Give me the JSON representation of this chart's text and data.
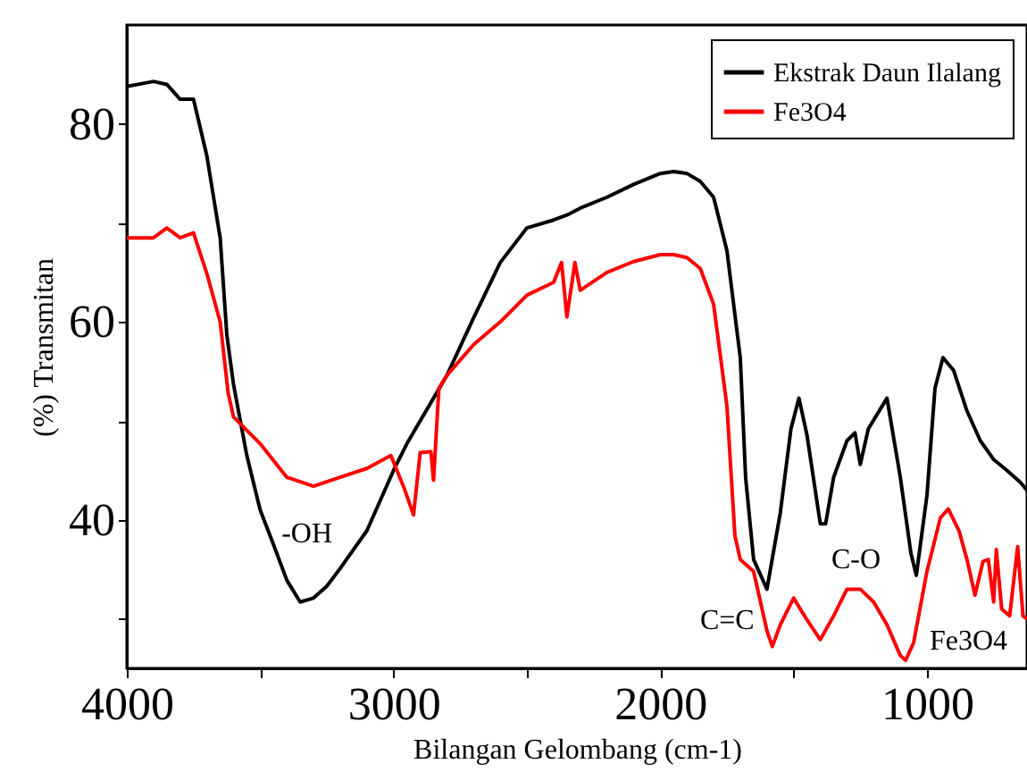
{
  "chart_data": {
    "type": "line",
    "xlabel": "Bilangan Gelombang (cm-1)",
    "ylabel": "(%) Transmitan",
    "x": [
      4000,
      3900,
      3850,
      3800,
      3750,
      3700,
      3650,
      3625,
      3600,
      3550,
      3500,
      3450,
      3400,
      3350,
      3300,
      3250,
      3200,
      3100,
      3000,
      2950,
      2900,
      2800,
      2700,
      2600,
      2500,
      2400,
      2350,
      2300,
      2200,
      2100,
      2000,
      1950,
      1900,
      1850,
      1800,
      1750,
      1700,
      1680,
      1650,
      1600,
      1550,
      1510,
      1480,
      1450,
      1400,
      1380,
      1350,
      1300,
      1270,
      1250,
      1220,
      1150,
      1100,
      1060,
      1040,
      1000,
      970,
      940,
      900,
      850,
      800,
      750,
      700,
      650,
      625
    ],
    "series": [
      {
        "name": "Ekstrak Daun Ilalang",
        "color": "#000000",
        "values": [
          83.8,
          84.3,
          84,
          82.5,
          82.5,
          76.8,
          68.5,
          58.7,
          53.7,
          46.5,
          41,
          37.5,
          33.9,
          31.7,
          32.1,
          33.3,
          35.1,
          38.9,
          45,
          47.7,
          50,
          54.6,
          60.4,
          66,
          69.5,
          70.3,
          70.8,
          71.5,
          72.6,
          73.9,
          75,
          75.2,
          75,
          74.2,
          72.6,
          67.2,
          56.4,
          44.3,
          36,
          33,
          40.7,
          49.2,
          52.3,
          48.6,
          39.6,
          39.6,
          44.3,
          48,
          48.8,
          45.6,
          49.2,
          52.3,
          44.3,
          36.6,
          34.4,
          42.5,
          53.3,
          56.4,
          55.1,
          51,
          48,
          46.1,
          45,
          43.8,
          43
        ]
      },
      {
        "name": "Fe3O4",
        "color": "#ff0000",
        "x": [
          4000,
          3900,
          3850,
          3800,
          3750,
          3700,
          3650,
          3620,
          3600,
          3500,
          3400,
          3300,
          3200,
          3100,
          3010,
          2960,
          2925,
          2900,
          2860,
          2850,
          2830,
          2800,
          2700,
          2600,
          2500,
          2400,
          2370,
          2350,
          2320,
          2300,
          2200,
          2100,
          2000,
          1950,
          1900,
          1850,
          1800,
          1750,
          1720,
          1700,
          1650,
          1600,
          1580,
          1550,
          1500,
          1450,
          1400,
          1350,
          1300,
          1250,
          1200,
          1150,
          1100,
          1080,
          1050,
          1000,
          950,
          920,
          880,
          850,
          820,
          790,
          770,
          750,
          740,
          720,
          690,
          660,
          640,
          625
        ],
        "values": [
          68.5,
          68.5,
          69.5,
          68.5,
          69,
          64.9,
          60,
          52.8,
          50.4,
          47.7,
          44.3,
          43.4,
          44.3,
          45.2,
          46.5,
          43.2,
          40.5,
          46.8,
          46.9,
          44,
          53.3,
          54.6,
          57.7,
          60,
          62.7,
          64,
          66,
          60.5,
          66,
          63.2,
          65,
          66.1,
          66.8,
          66.8,
          66.5,
          65.4,
          61.8,
          51.5,
          38.4,
          36,
          34.8,
          28.8,
          27.2,
          29.4,
          32.1,
          29.9,
          27.9,
          30.3,
          33,
          33,
          31.7,
          29.4,
          26.3,
          25.8,
          27.6,
          34.8,
          40.2,
          41.1,
          38.9,
          36,
          32.4,
          35.8,
          36,
          31.7,
          37,
          31,
          30.3,
          37.3,
          30.3,
          30
        ]
      }
    ],
    "xlim": [
      4000,
      625
    ],
    "ylim": [
      25,
      90
    ],
    "xticks": [
      4000,
      {
        "value": 3500,
        "label": null
      },
      3000,
      {
        "value": 2500,
        "label": null
      },
      2000,
      {
        "value": 1500,
        "label": null
      },
      1000
    ],
    "yticks": [
      {
        "value": 30,
        "label": null
      },
      40,
      {
        "value": 50,
        "label": null
      },
      60,
      {
        "value": 70,
        "label": null
      },
      80
    ],
    "annotations": [
      "-OH",
      "C=C",
      "C-O",
      "Fe3O4"
    ],
    "legend": "top right",
    "grid": false,
    "marker": "none",
    "line_style": "solid"
  }
}
